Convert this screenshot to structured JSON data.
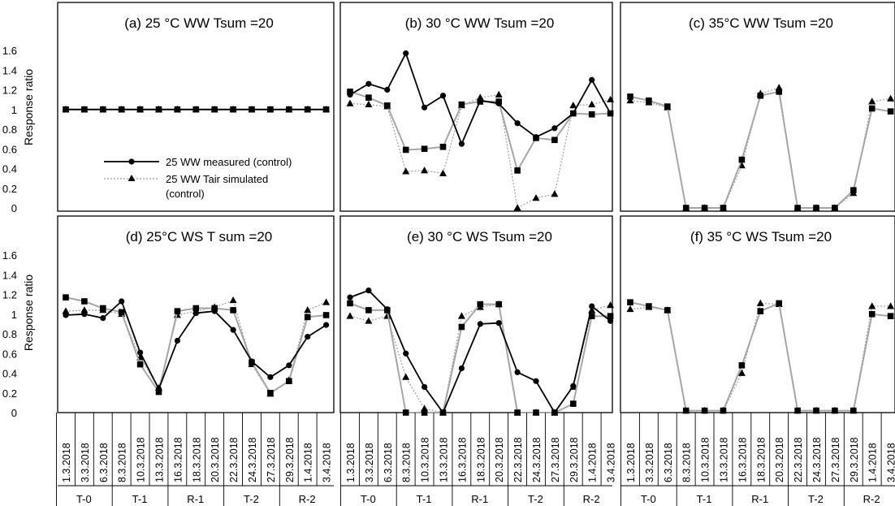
{
  "figure": {
    "y_axis_label": "Response ratio",
    "y_ticks": [
      "0",
      "0.2",
      "0.4",
      "0.6",
      "0.8",
      "1",
      "1.2",
      "1.4",
      "1.6"
    ],
    "dates": [
      "1.3.2018",
      "3.3.2018",
      "6.3.2018",
      "8.3.2018",
      "10.3.2018",
      "13.3.2018",
      "16.3.2018",
      "18.3.2018",
      "20.3.2018",
      "22.3.2018",
      "24.3.2018",
      "27.3.2018",
      "29.3.2018",
      "1.4.2018",
      "3.4.2018"
    ],
    "periods": [
      "T-0",
      "T-1",
      "R-1",
      "T-2",
      "R-2"
    ],
    "legend": {
      "measured": "25 WW measured (control)",
      "simulated_line1": "25 WW Tair simulated",
      "simulated_line2": "(control)"
    },
    "colors": {
      "measured": "#000000",
      "simulated_squares": "#a6a6a6",
      "simulated_triangles": "#a6a6a6"
    }
  },
  "chart_data": [
    {
      "type": "line",
      "title": "(a) 25 °C WW Tsum =20",
      "ylim": [
        0,
        1.6
      ],
      "categories": [
        "1.3.2018",
        "3.3.2018",
        "6.3.2018",
        "8.3.2018",
        "10.3.2018",
        "13.3.2018",
        "16.3.2018",
        "18.3.2018",
        "20.3.2018",
        "22.3.2018",
        "24.3.2018",
        "27.3.2018",
        "29.3.2018",
        "1.4.2018",
        "3.4.2018"
      ],
      "series": [
        {
          "name": "25 WW measured (control)",
          "style": "circle-black",
          "values": [
            1,
            1,
            1,
            1,
            1,
            1,
            1,
            1,
            1,
            1,
            1,
            1,
            1,
            1,
            1
          ]
        },
        {
          "style": "square-gray",
          "values": [
            1,
            1,
            1,
            1,
            1,
            1,
            1,
            1,
            1,
            1,
            1,
            1,
            1,
            1,
            1
          ]
        },
        {
          "name": "25 WW Tair simulated (control)",
          "style": "triangle-dotted",
          "values": [
            1,
            1,
            1,
            1,
            1,
            1,
            1,
            1,
            1,
            1,
            1,
            1,
            1,
            1,
            1
          ]
        }
      ]
    },
    {
      "type": "line",
      "title": "(b) 30 °C WW Tsum =20",
      "ylim": [
        0,
        1.6
      ],
      "categories": [
        "1.3.2018",
        "3.3.2018",
        "6.3.2018",
        "8.3.2018",
        "10.3.2018",
        "13.3.2018",
        "16.3.2018",
        "18.3.2018",
        "20.3.2018",
        "22.3.2018",
        "24.3.2018",
        "27.3.2018",
        "29.3.2018",
        "1.4.2018",
        "3.4.2018"
      ],
      "series": [
        {
          "style": "circle-black",
          "values": [
            1.15,
            1.26,
            1.2,
            1.57,
            1.02,
            1.14,
            0.65,
            1.09,
            1.06,
            0.86,
            0.72,
            0.81,
            0.96,
            1.3,
            0.96
          ]
        },
        {
          "style": "square-gray",
          "values": [
            1.18,
            1.12,
            1.04,
            0.59,
            0.6,
            0.62,
            1.05,
            1.08,
            1.08,
            0.38,
            0.71,
            0.69,
            0.96,
            0.95,
            0.96
          ]
        },
        {
          "style": "triangle-dotted",
          "values": [
            1.06,
            1.05,
            1.03,
            0.37,
            0.38,
            0.35,
            1.04,
            1.12,
            1.15,
            0,
            0.1,
            0.14,
            1.04,
            1.05,
            1.1
          ]
        }
      ]
    },
    {
      "type": "line",
      "title": "(c) 35°C WW Tsum =20",
      "ylim": [
        0,
        1.6
      ],
      "categories": [
        "1.3.2018",
        "3.3.2018",
        "6.3.2018",
        "8.3.2018",
        "10.3.2018",
        "13.3.2018",
        "16.3.2018",
        "18.3.2018",
        "20.3.2018",
        "22.3.2018",
        "24.3.2018",
        "27.3.2018",
        "29.3.2018",
        "1.4.2018",
        "3.4.2018"
      ],
      "series": [
        {
          "style": "square-gray",
          "values": [
            1.13,
            1.09,
            1.03,
            0,
            0,
            0,
            0.49,
            1.14,
            1.18,
            0,
            0,
            0,
            0.18,
            1.01,
            0.98
          ]
        },
        {
          "style": "triangle-dotted",
          "values": [
            1.09,
            1.07,
            1.02,
            0,
            0,
            0,
            0.43,
            1.16,
            1.22,
            0,
            0,
            0,
            0.15,
            1.08,
            1.11
          ]
        }
      ]
    },
    {
      "type": "line",
      "title": "(d) 25°C WS T sum =20",
      "ylim": [
        0,
        1.6
      ],
      "categories": [
        "1.3.2018",
        "3.3.2018",
        "6.3.2018",
        "8.3.2018",
        "10.3.2018",
        "13.3.2018",
        "16.3.2018",
        "18.3.2018",
        "20.3.2018",
        "22.3.2018",
        "24.3.2018",
        "27.3.2018",
        "29.3.2018",
        "1.4.2018",
        "3.4.2018"
      ],
      "series": [
        {
          "style": "circle-black",
          "values": [
            0.99,
            1.0,
            0.96,
            1.13,
            0.61,
            0.24,
            0.73,
            1.01,
            1.03,
            0.84,
            0.52,
            0.36,
            0.48,
            0.77,
            0.89
          ]
        },
        {
          "style": "square-gray",
          "values": [
            1.17,
            1.13,
            1.06,
            1.02,
            0.49,
            0.21,
            1.03,
            1.06,
            1.06,
            1.04,
            0.51,
            0.2,
            0.32,
            0.97,
            0.99
          ]
        },
        {
          "style": "triangle-dotted",
          "values": [
            1.03,
            1.04,
            1.04,
            1.0,
            0.56,
            0.25,
            0.99,
            1.03,
            1.07,
            1.14,
            0.49,
            0.19,
            0.33,
            1.04,
            1.12
          ]
        }
      ]
    },
    {
      "type": "line",
      "title": "(e) 30 °C WS Tsum =20",
      "ylim": [
        0,
        1.6
      ],
      "categories": [
        "1.3.2018",
        "3.3.2018",
        "6.3.2018",
        "8.3.2018",
        "10.3.2018",
        "13.3.2018",
        "16.3.2018",
        "18.3.2018",
        "20.3.2018",
        "22.3.2018",
        "24.3.2018",
        "27.3.2018",
        "29.3.2018",
        "1.4.2018",
        "3.4.2018"
      ],
      "series": [
        {
          "style": "circle-black",
          "values": [
            1.17,
            1.24,
            1.05,
            0.6,
            0.26,
            0,
            0.45,
            0.9,
            0.91,
            0.41,
            0.32,
            0,
            0.27,
            1.08,
            0.93
          ]
        },
        {
          "style": "square-gray",
          "values": [
            1.11,
            1.04,
            1.04,
            0,
            0,
            0,
            0.87,
            1.1,
            1.1,
            0,
            0,
            0,
            0.09,
            0.98,
            0.98
          ]
        },
        {
          "style": "triangle-dotted",
          "values": [
            0.98,
            0.93,
            0.98,
            0.36,
            0.04,
            0,
            0.98,
            1.07,
            1.1,
            0,
            0,
            0,
            0.26,
            1.04,
            1.09
          ]
        }
      ]
    },
    {
      "type": "line",
      "title": "(f) 35 °C WS Tsum =20",
      "ylim": [
        0,
        1.6
      ],
      "categories": [
        "1.3.2018",
        "3.3.2018",
        "6.3.2018",
        "8.3.2018",
        "10.3.2018",
        "13.3.2018",
        "16.3.2018",
        "18.3.2018",
        "20.3.2018",
        "22.3.2018",
        "24.3.2018",
        "27.3.2018",
        "29.3.2018",
        "1.4.2018",
        "3.4.2018"
      ],
      "series": [
        {
          "style": "square-gray",
          "values": [
            1.12,
            1.08,
            1.04,
            0.02,
            0.02,
            0.02,
            0.48,
            1.03,
            1.11,
            0.02,
            0.02,
            0.02,
            0.02,
            1.0,
            0.98
          ]
        },
        {
          "style": "triangle-dotted",
          "values": [
            1.05,
            1.07,
            1.04,
            0.02,
            0.02,
            0.02,
            0.4,
            1.11,
            1.1,
            0.02,
            0.02,
            0.02,
            0.02,
            1.08,
            1.08
          ]
        }
      ]
    }
  ]
}
